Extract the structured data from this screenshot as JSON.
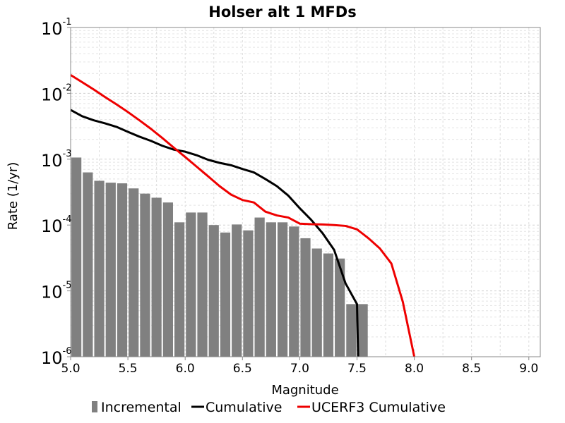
{
  "chart_data": {
    "type": "bar",
    "title": "Holser alt 1 MFDs",
    "xlabel": "Magnitude",
    "ylabel": "Rate (1/yr)",
    "xlim": [
      5.0,
      9.1
    ],
    "ylim": [
      1e-06,
      0.1
    ],
    "y_scale": "log",
    "grid": true,
    "legend_position": "bottom",
    "x_ticks": [
      "5.0",
      "5.5",
      "6.0",
      "6.5",
      "7.0",
      "7.5",
      "8.0",
      "8.5",
      "9.0"
    ],
    "x_tick_values": [
      5.0,
      5.5,
      6.0,
      6.5,
      7.0,
      7.5,
      8.0,
      8.5,
      9.0
    ],
    "y_ticks": [
      {
        "base": "10",
        "exp": "-1",
        "value": 0.1
      },
      {
        "base": "10",
        "exp": "-2",
        "value": 0.01
      },
      {
        "base": "10",
        "exp": "-3",
        "value": 0.001
      },
      {
        "base": "10",
        "exp": "-4",
        "value": 0.0001
      },
      {
        "base": "10",
        "exp": "-5",
        "value": 1e-05
      },
      {
        "base": "10",
        "exp": "-6",
        "value": 1e-06
      }
    ],
    "series": [
      {
        "name": "Incremental",
        "type": "bar",
        "color": "#808080",
        "bar_width": 0.1,
        "x": [
          5.05,
          5.15,
          5.25,
          5.35,
          5.45,
          5.55,
          5.65,
          5.75,
          5.85,
          5.95,
          6.05,
          6.15,
          6.25,
          6.35,
          6.45,
          6.55,
          6.65,
          6.75,
          6.85,
          6.95,
          7.05,
          7.15,
          7.25,
          7.35,
          7.45,
          7.55
        ],
        "values": [
          0.00106,
          0.00063,
          0.00047,
          0.00044,
          0.00043,
          0.00036,
          0.0003,
          0.00026,
          0.00022,
          0.00011,
          0.000155,
          0.000155,
          0.0001,
          7.7e-05,
          0.000102,
          8.3e-05,
          0.00013,
          0.00011,
          0.00011,
          9.5e-05,
          6.3e-05,
          4.4e-05,
          3.7e-05,
          3.1e-05,
          6.3e-06,
          6.3e-06
        ]
      },
      {
        "name": "Cumulative",
        "type": "line",
        "color": "#000000",
        "x": [
          5.0,
          5.1,
          5.2,
          5.3,
          5.4,
          5.5,
          5.6,
          5.7,
          5.8,
          5.9,
          6.0,
          6.1,
          6.2,
          6.3,
          6.4,
          6.5,
          6.6,
          6.7,
          6.8,
          6.9,
          7.0,
          7.1,
          7.2,
          7.3,
          7.4,
          7.5,
          7.51
        ],
        "values": [
          0.0056,
          0.0045,
          0.0039,
          0.0035,
          0.0031,
          0.0026,
          0.0022,
          0.0019,
          0.0016,
          0.0014,
          0.0013,
          0.00115,
          0.00098,
          0.00088,
          0.00081,
          0.00071,
          0.00063,
          0.0005,
          0.00039,
          0.00028,
          0.00018,
          0.00012,
          7.5e-05,
          4.2e-05,
          1.3e-05,
          6.3e-06,
          1e-06
        ]
      },
      {
        "name": "UCERF3 Cumulative",
        "type": "line",
        "color": "#ee0000",
        "x": [
          5.0,
          5.1,
          5.2,
          5.3,
          5.4,
          5.5,
          5.6,
          5.7,
          5.8,
          5.9,
          6.0,
          6.1,
          6.2,
          6.3,
          6.4,
          6.5,
          6.6,
          6.7,
          6.8,
          6.9,
          7.0,
          7.1,
          7.2,
          7.3,
          7.4,
          7.5,
          7.6,
          7.7,
          7.8,
          7.9,
          8.0
        ],
        "values": [
          0.019,
          0.0148,
          0.0115,
          0.0088,
          0.0068,
          0.0052,
          0.0039,
          0.0029,
          0.0021,
          0.0015,
          0.00108,
          0.00077,
          0.00055,
          0.00039,
          0.00029,
          0.00024,
          0.00022,
          0.00016,
          0.00014,
          0.00013,
          0.000105,
          0.000103,
          0.000102,
          0.0001,
          9.7e-05,
          8.6e-05,
          6.3e-05,
          4.4e-05,
          2.6e-05,
          6.8e-06,
          1e-06
        ]
      }
    ],
    "legend": [
      "Incremental",
      "Cumulative",
      "UCERF3 Cumulative"
    ]
  }
}
